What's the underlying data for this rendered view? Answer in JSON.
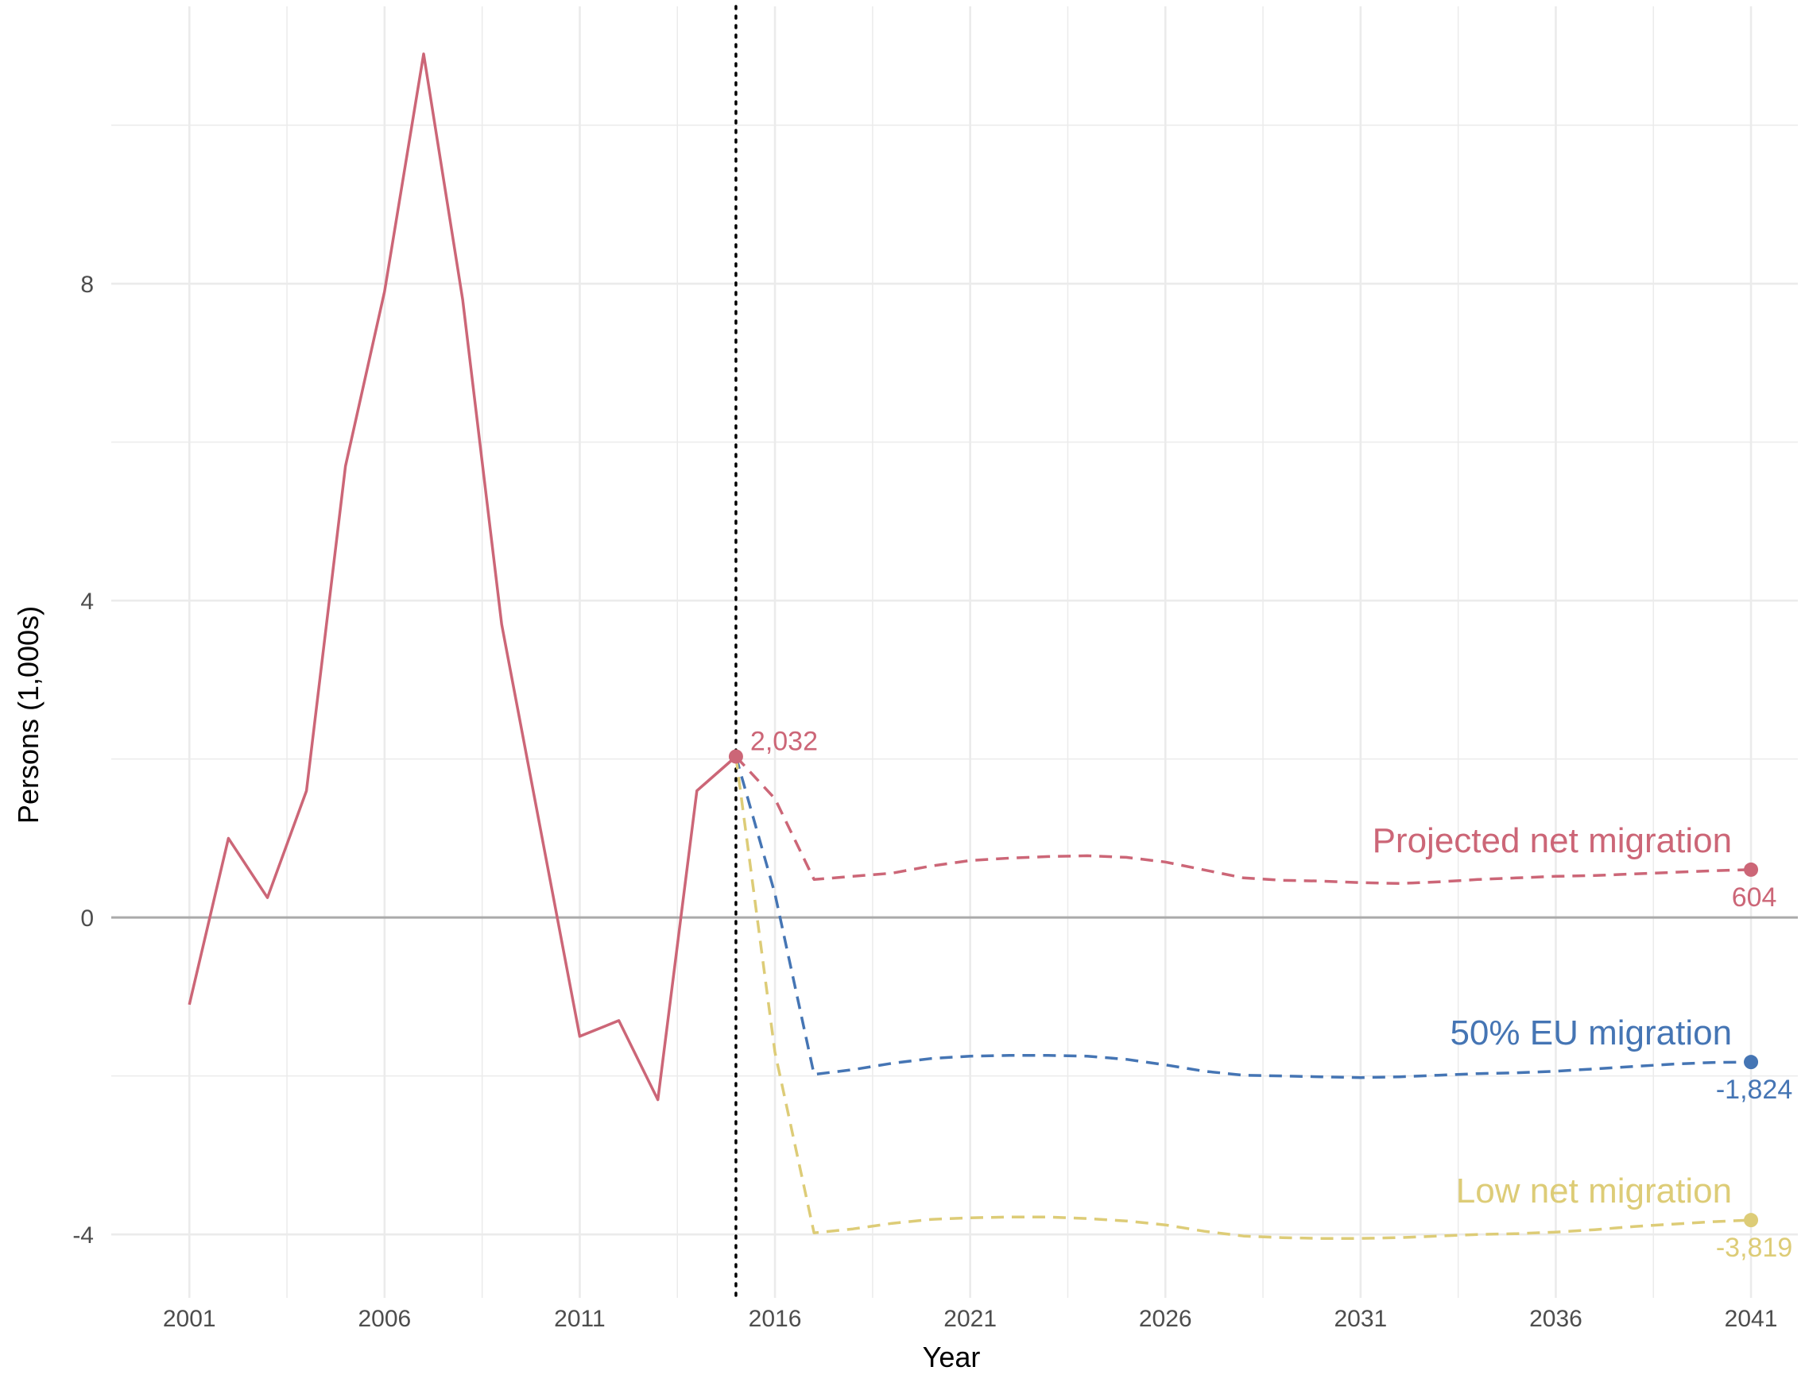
{
  "chart_data": {
    "type": "line",
    "title": "",
    "xlabel": "Year",
    "ylabel": "Persons (1,000s)",
    "xlim": [
      1999,
      2042.2
    ],
    "ylim": [
      -4.8,
      11.5
    ],
    "x_ticks": [
      2001,
      2006,
      2011,
      2016,
      2021,
      2026,
      2031,
      2036,
      2041
    ],
    "x_tick_labels": [
      "2001",
      "2006",
      "2011",
      "2016",
      "2021",
      "2026",
      "2031",
      "2036",
      "2041"
    ],
    "y_ticks": [
      -4,
      0,
      4,
      8
    ],
    "y_tick_labels": [
      "-4",
      "0",
      "4",
      "8"
    ],
    "grid": true,
    "reference_line": {
      "x": 2015,
      "style": "dotted",
      "color": "#000000"
    },
    "colors": {
      "projected": "#CC6677",
      "eu50": "#4575B4",
      "low": "#DDCC77",
      "zero_line": "#aaaaaa",
      "grid": "#ebebeb"
    },
    "historical": {
      "x": [
        2001,
        2002,
        2003,
        2004,
        2005,
        2006,
        2007,
        2008,
        2009,
        2010,
        2011,
        2012,
        2013,
        2014,
        2015
      ],
      "values": [
        -1.1,
        1.0,
        0.25,
        1.6,
        5.7,
        7.9,
        10.9,
        7.8,
        3.7,
        1.1,
        -1.5,
        -1.3,
        -2.3,
        1.6,
        2.032
      ],
      "point_label": "2,032"
    },
    "series": [
      {
        "name": "Projected net migration",
        "x": [
          2015,
          2016,
          2017,
          2018,
          2019,
          2020,
          2021,
          2022,
          2023,
          2024,
          2025,
          2026,
          2027,
          2028,
          2029,
          2030,
          2031,
          2032,
          2033,
          2034,
          2035,
          2036,
          2037,
          2038,
          2039,
          2040,
          2041
        ],
        "values": [
          2.032,
          1.5,
          0.48,
          0.52,
          0.56,
          0.65,
          0.72,
          0.75,
          0.77,
          0.78,
          0.76,
          0.7,
          0.6,
          0.5,
          0.47,
          0.46,
          0.44,
          0.43,
          0.45,
          0.48,
          0.5,
          0.52,
          0.53,
          0.55,
          0.57,
          0.59,
          0.604
        ],
        "end_label": "604",
        "style": "dashed"
      },
      {
        "name": "50% EU migration",
        "x": [
          2015,
          2016,
          2017,
          2018,
          2019,
          2020,
          2021,
          2022,
          2023,
          2024,
          2025,
          2026,
          2027,
          2028,
          2029,
          2030,
          2031,
          2032,
          2033,
          2034,
          2035,
          2036,
          2037,
          2038,
          2039,
          2040,
          2041
        ],
        "values": [
          2.032,
          0.3,
          -1.98,
          -1.92,
          -1.84,
          -1.78,
          -1.75,
          -1.74,
          -1.74,
          -1.75,
          -1.79,
          -1.86,
          -1.94,
          -1.99,
          -2.0,
          -2.01,
          -2.02,
          -2.01,
          -1.99,
          -1.97,
          -1.96,
          -1.94,
          -1.91,
          -1.88,
          -1.85,
          -1.83,
          -1.824
        ],
        "end_label": "-1,824",
        "style": "dashed"
      },
      {
        "name": "Low net migration",
        "x": [
          2015,
          2016,
          2017,
          2018,
          2019,
          2020,
          2021,
          2022,
          2023,
          2024,
          2025,
          2026,
          2027,
          2028,
          2029,
          2030,
          2031,
          2032,
          2033,
          2034,
          2035,
          2036,
          2037,
          2038,
          2039,
          2040,
          2041
        ],
        "values": [
          2.032,
          -1.7,
          -3.98,
          -3.93,
          -3.86,
          -3.81,
          -3.79,
          -3.78,
          -3.78,
          -3.8,
          -3.83,
          -3.88,
          -3.96,
          -4.02,
          -4.04,
          -4.05,
          -4.05,
          -4.04,
          -4.02,
          -4.0,
          -3.99,
          -3.97,
          -3.94,
          -3.9,
          -3.87,
          -3.84,
          -3.819
        ],
        "end_label": "-3,819",
        "style": "dashed"
      }
    ]
  }
}
